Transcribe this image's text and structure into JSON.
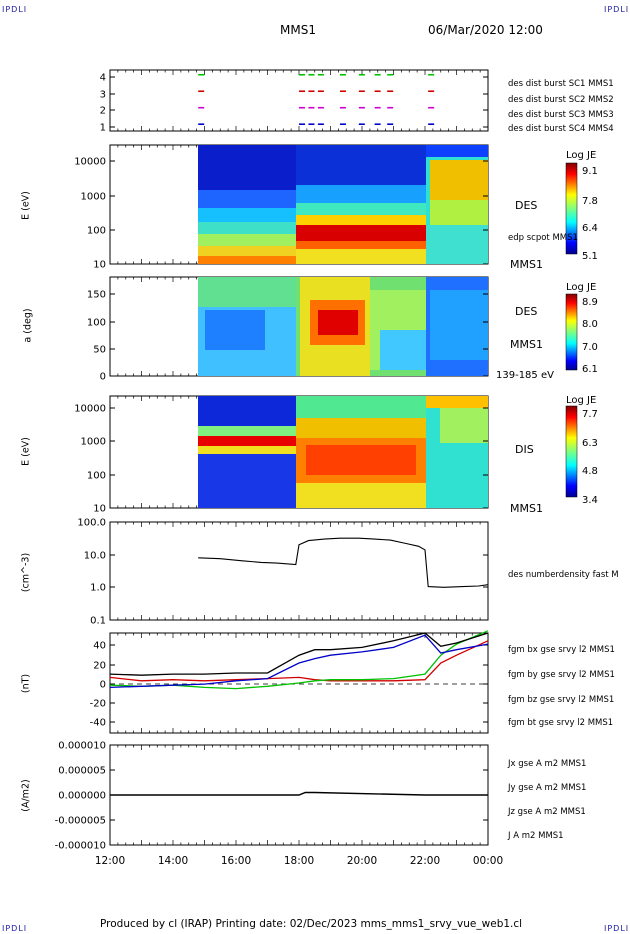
{
  "header": {
    "left_corner": "IPDLI",
    "right_corner": "IPDLI",
    "spacecraft": "MMS1",
    "datetime": "06/Mar/2020 12:00"
  },
  "footer": {
    "left_corner": "IPDLI",
    "right_corner": "IPDLI",
    "text": "Produced by cl (IRAP)   Printing date: 02/Dec/2023   mms_mms1_srvy_vue_web1.cl"
  },
  "time_axis": {
    "ticks": [
      "12:00",
      "14:00",
      "16:00",
      "18:00",
      "20:00",
      "22:00",
      "00:00"
    ]
  },
  "panels": {
    "burst": {
      "yticks": [
        "4",
        "3",
        "2",
        "1"
      ],
      "legend": [
        {
          "text": "des dist burst SC1 MMS1",
          "color": "#0000c8"
        },
        {
          "text": "des dist burst SC2 MMS2",
          "color": "#d000d0"
        },
        {
          "text": "des dist burst SC3 MMS3",
          "color": "#d00000"
        },
        {
          "text": "des dist burst SC4 MMS4",
          "color": "#00c000"
        }
      ]
    },
    "des_energy": {
      "ylabel": "E (eV)",
      "yticks": [
        "10000",
        "1000",
        "100",
        "10"
      ],
      "label": "DES",
      "overlay": "edp scpot MMS1",
      "sc": "MMS1",
      "cb_title": "Log JE",
      "cb_ticks": [
        "9.1",
        "7.8",
        "6.4",
        "5.1"
      ]
    },
    "des_pitch": {
      "ylabel": "a (deg)",
      "yticks": [
        "150",
        "100",
        "50",
        "0"
      ],
      "label": "DES",
      "sc": "MMS1",
      "range": "139-185 eV",
      "cb_title": "Log JE",
      "cb_ticks": [
        "8.9",
        "8.0",
        "7.0",
        "6.1"
      ]
    },
    "dis_energy": {
      "ylabel": "E (eV)",
      "yticks": [
        "10000",
        "1000",
        "100",
        "10"
      ],
      "label": "DIS",
      "sc": "MMS1",
      "cb_title": "Log JE",
      "cb_ticks": [
        "7.7",
        "6.3",
        "4.8",
        "3.4"
      ]
    },
    "density": {
      "ylabel": "(cm^-3)",
      "yticks": [
        "100.0",
        "10.0",
        "1.0",
        "0.1"
      ],
      "legend": "des numberdensity fast M"
    },
    "bfield": {
      "ylabel": "(nT)",
      "yticks": [
        "40",
        "20",
        "0",
        "-20",
        "-40"
      ],
      "legend": [
        {
          "text": "fgm bx gse srvy l2 MMS1",
          "color": "#d00000"
        },
        {
          "text": "fgm by gse srvy l2 MMS1",
          "color": "#00c000"
        },
        {
          "text": "fgm bz gse srvy l2 MMS1",
          "color": "#0000c8"
        },
        {
          "text": "fgm bt gse srvy l2 MMS1",
          "color": "#000000"
        }
      ]
    },
    "current": {
      "ylabel": "(A/m2)",
      "yticks": [
        "0.000010",
        "0.000005",
        "0.000000",
        "-0.000005",
        "-0.000010"
      ],
      "legend": [
        {
          "text": "Jx gse A m2 MMS1",
          "color": "#d00000"
        },
        {
          "text": "Jy gse A m2 MMS1",
          "color": "#00c000"
        },
        {
          "text": "Jz gse A m2 MMS1",
          "color": "#0000c8"
        },
        {
          "text": "J A m2 MMS1",
          "color": "#000000"
        }
      ]
    }
  },
  "chart_data": [
    {
      "type": "scatter",
      "name": "burst intervals",
      "x_hours": [
        14.8,
        18.0,
        18.3,
        18.6,
        19.3,
        19.9,
        20.4,
        20.8,
        22.1
      ],
      "series": [
        {
          "name": "des dist burst SC1 MMS1",
          "values": [
            1,
            1,
            1,
            1,
            1,
            1,
            1,
            1,
            1
          ]
        },
        {
          "name": "des dist burst SC2 MMS2",
          "values": [
            2,
            2,
            2,
            2,
            2,
            2,
            2,
            2,
            2
          ]
        },
        {
          "name": "des dist burst SC3 MMS3",
          "values": [
            3,
            3,
            3,
            3,
            3,
            3,
            3,
            3,
            3
          ]
        },
        {
          "name": "des dist burst SC4 MMS4",
          "values": [
            4,
            4,
            4,
            4,
            4,
            4,
            4,
            4,
            4
          ]
        }
      ],
      "ylim": [
        0.6,
        4.3
      ]
    },
    {
      "type": "heatmap",
      "name": "DES energy",
      "xlim": [
        "12:00",
        "00:00"
      ],
      "ylim": [
        10,
        30000
      ],
      "yscale": "log",
      "zlim": [
        5.1,
        9.1
      ]
    },
    {
      "type": "heatmap",
      "name": "DES pitch angle",
      "xlim": [
        "12:00",
        "00:00"
      ],
      "ylim": [
        0,
        180
      ],
      "zlim": [
        6.1,
        8.9
      ]
    },
    {
      "type": "heatmap",
      "name": "DIS energy",
      "xlim": [
        "12:00",
        "00:00"
      ],
      "ylim": [
        10,
        30000
      ],
      "yscale": "log",
      "zlim": [
        3.4,
        7.7
      ]
    },
    {
      "type": "line",
      "name": "density",
      "yscale": "log",
      "ylim": [
        0.1,
        100
      ],
      "x": [
        14.8,
        15.5,
        16.2,
        16.8,
        17.3,
        17.9,
        18.0,
        18.3,
        18.8,
        19.3,
        19.9,
        20.4,
        20.9,
        21.4,
        21.8,
        22.0,
        22.1,
        22.6,
        23.2,
        23.7,
        24.0
      ],
      "values": [
        8.0,
        7.5,
        6.5,
        5.8,
        5.5,
        5.0,
        20.0,
        27.0,
        30.0,
        32.0,
        32.0,
        30.0,
        28.0,
        22.0,
        18.0,
        14.0,
        1.05,
        1.0,
        1.05,
        1.1,
        1.2
      ]
    },
    {
      "type": "line",
      "name": "magnetic field",
      "ylim": [
        -45,
        45
      ],
      "x": [
        12.0,
        13.0,
        14.0,
        15.0,
        16.0,
        17.0,
        18.0,
        18.5,
        19.0,
        20.0,
        21.0,
        22.0,
        22.5,
        23.0,
        24.0
      ],
      "series": [
        {
          "name": "fgm bx gse srvy l2 MMS1",
          "values": [
            5,
            2,
            3,
            2,
            3,
            4,
            5,
            3,
            2,
            2,
            2,
            3,
            18,
            25,
            38
          ]
        },
        {
          "name": "fgm by gse srvy l2 MMS1",
          "values": [
            -2,
            -3,
            -2,
            -4,
            -5,
            -3,
            0,
            2,
            3,
            3,
            4,
            8,
            25,
            35,
            47
          ]
        },
        {
          "name": "fgm bz gse srvy l2 MMS1",
          "values": [
            -4,
            -3,
            -2,
            -1,
            2,
            4,
            18,
            22,
            25,
            28,
            32,
            43,
            27,
            30,
            35
          ]
        },
        {
          "name": "fgm bt gse srvy l2 MMS1",
          "values": [
            8,
            7,
            8,
            8,
            9,
            9,
            25,
            30,
            30,
            32,
            38,
            45,
            33,
            36,
            45
          ]
        }
      ]
    },
    {
      "type": "line",
      "name": "current density",
      "ylim": [
        -1e-05,
        1e-05
      ],
      "x": [
        12.0,
        18.0,
        18.2,
        18.5,
        22.0,
        24.0
      ],
      "series": [
        {
          "name": "J A m2 MMS1",
          "values": [
            0.0,
            0.0,
            5e-07,
            5e-07,
            0.0,
            0.0
          ]
        }
      ]
    }
  ]
}
